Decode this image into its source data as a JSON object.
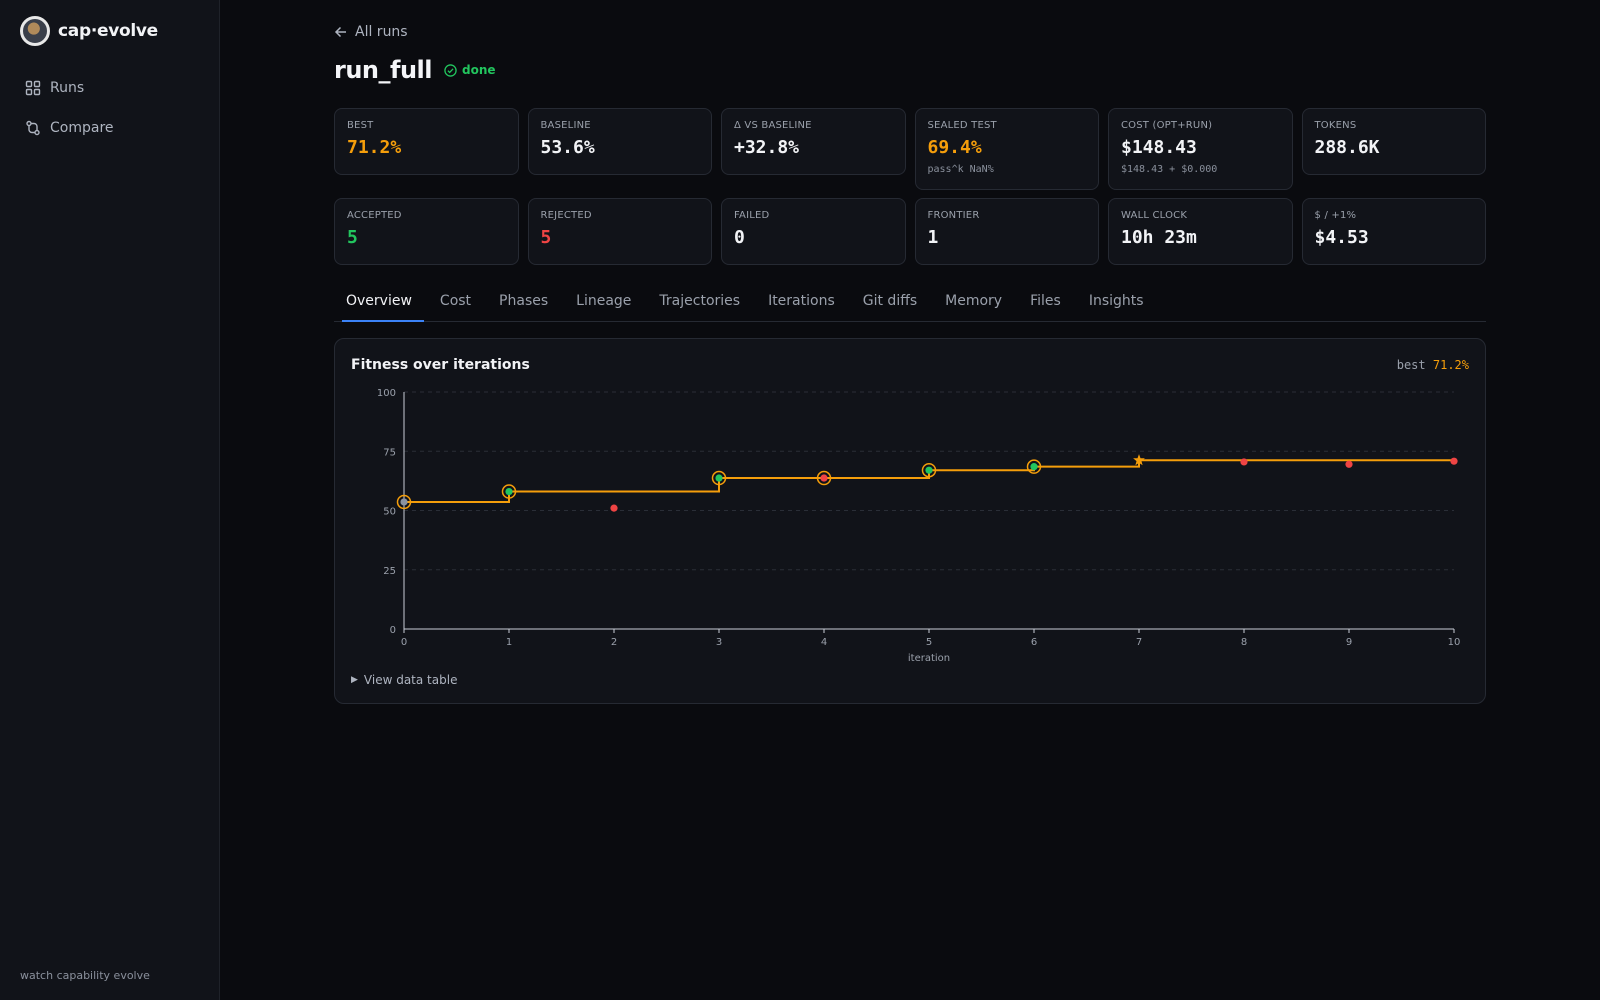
{
  "app": {
    "name": "cap·evolve",
    "tagline": "watch capability evolve"
  },
  "nav": [
    {
      "label": "Runs",
      "icon": "grid-icon"
    },
    {
      "label": "Compare",
      "icon": "compare-icon"
    }
  ],
  "back_label": "All runs",
  "run": {
    "name": "run_full",
    "status": "done"
  },
  "stats_row1": [
    {
      "label": "Best",
      "value": "71.2%",
      "color": "#f59e0b"
    },
    {
      "label": "Baseline",
      "value": "53.6%"
    },
    {
      "label": "Δ vs baseline",
      "value": "+32.8%"
    },
    {
      "label": "Sealed test",
      "value": "69.4%",
      "sub": "pass^k NaN%",
      "color": "#f59e0b"
    },
    {
      "label": "Cost (opt+run)",
      "value": "$148.43",
      "sub": "$148.43 + $0.000"
    },
    {
      "label": "Tokens",
      "value": "288.6K"
    }
  ],
  "stats_row2": [
    {
      "label": "Accepted",
      "value": "5",
      "color": "#22c55e"
    },
    {
      "label": "Rejected",
      "value": "5",
      "color": "#ef4444"
    },
    {
      "label": "Failed",
      "value": "0"
    },
    {
      "label": "Frontier",
      "value": "1"
    },
    {
      "label": "Wall clock",
      "value": "10h 23m"
    },
    {
      "label": "$ / +1%",
      "value": "$4.53"
    }
  ],
  "tabs": [
    "Overview",
    "Cost",
    "Phases",
    "Lineage",
    "Trajectories",
    "Iterations",
    "Git diffs",
    "Memory",
    "Files",
    "Insights"
  ],
  "active_tab": "Overview",
  "panel": {
    "title": "Fitness over iterations",
    "best_label": "best",
    "best_value": "71.2%",
    "view_table": "View data table"
  },
  "colors": {
    "accent": "#f59e0b",
    "accepted": "#22c55e",
    "rejected": "#ef4444",
    "baseline": "#8b93a1",
    "tab_active": "#3b82f6"
  },
  "chart_data": {
    "type": "line",
    "xlabel": "iteration",
    "ylabel": "",
    "xlim": [
      0,
      10
    ],
    "ylim": [
      0,
      100
    ],
    "yticks": [
      0,
      25,
      50,
      75,
      100
    ],
    "xticks": [
      0,
      1,
      2,
      3,
      4,
      5,
      6,
      7,
      8,
      9,
      10
    ],
    "grid": true,
    "series": [
      {
        "kind": "best-so-far step",
        "x": [
          0,
          1,
          3,
          5,
          6,
          7,
          10
        ],
        "values": [
          53.6,
          58.0,
          63.7,
          67.0,
          68.5,
          71.2,
          71.2
        ]
      }
    ],
    "points": [
      {
        "x": 0,
        "y": 53.6,
        "status": "baseline",
        "frontier": true
      },
      {
        "x": 1,
        "y": 58.0,
        "status": "accepted",
        "frontier": true
      },
      {
        "x": 2,
        "y": 51.0,
        "status": "rejected",
        "frontier": false
      },
      {
        "x": 3,
        "y": 63.7,
        "status": "accepted",
        "frontier": true
      },
      {
        "x": 4,
        "y": 63.7,
        "status": "rejected",
        "frontier": true
      },
      {
        "x": 5,
        "y": 67.0,
        "status": "accepted",
        "frontier": true
      },
      {
        "x": 6,
        "y": 68.5,
        "status": "accepted",
        "frontier": true
      },
      {
        "x": 7,
        "y": 71.2,
        "status": "best",
        "frontier": false
      },
      {
        "x": 8,
        "y": 70.5,
        "status": "rejected",
        "frontier": false
      },
      {
        "x": 9,
        "y": 69.5,
        "status": "rejected",
        "frontier": false
      },
      {
        "x": 10,
        "y": 70.8,
        "status": "rejected",
        "frontier": false
      }
    ]
  }
}
